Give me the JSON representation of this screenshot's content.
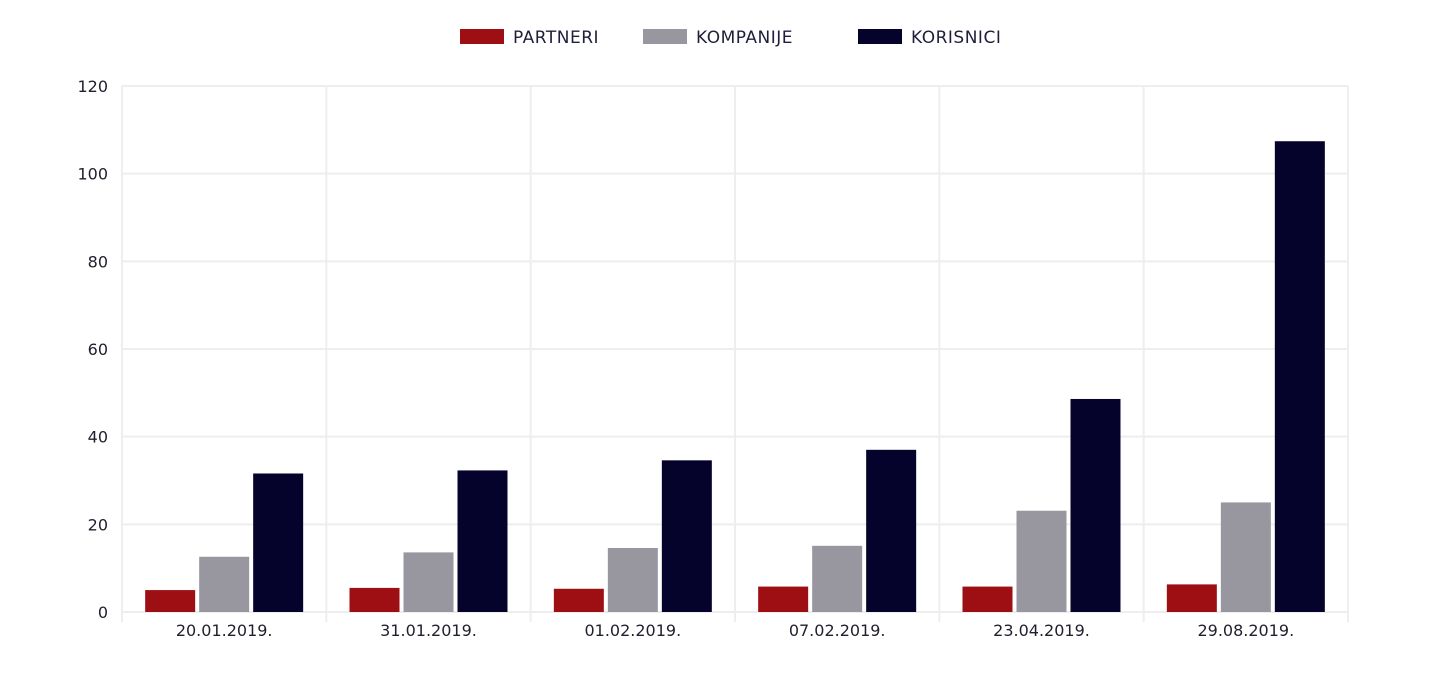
{
  "chart_data": {
    "type": "bar",
    "categories": [
      "20.01.2019.",
      "31.01.2019.",
      "01.02.2019.",
      "07.02.2019.",
      "23.04.2019.",
      "29.08.2019."
    ],
    "series": [
      {
        "name": "PARTNERI",
        "values": [
          5,
          5.5,
          5.3,
          5.8,
          5.8,
          6.3
        ]
      },
      {
        "name": "KOMPANIJE",
        "values": [
          12.6,
          13.6,
          14.6,
          15.1,
          23.1,
          25
        ]
      },
      {
        "name": "KORISNICI",
        "values": [
          31.6,
          32.3,
          34.6,
          37,
          48.6,
          107.4
        ]
      }
    ],
    "ylim": [
      0,
      120
    ],
    "yticks": [
      "0",
      "20",
      "40",
      "60",
      "80",
      "100",
      "120"
    ],
    "colors": {
      "PARTNERI": "#9e0f13",
      "KOMPANIJE": "#98979f",
      "KORISNICI": "#05032c"
    },
    "legend_position": "top-center",
    "grid": true
  }
}
